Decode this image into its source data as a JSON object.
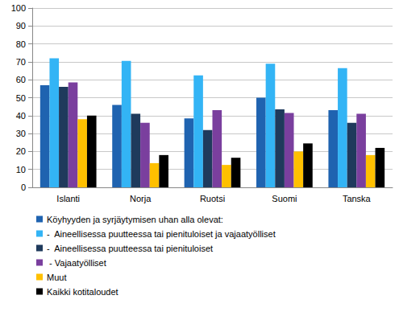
{
  "chart_data": {
    "type": "bar",
    "categories": [
      "Islanti",
      "Norja",
      "Ruotsi",
      "Suomi",
      "Tanska"
    ],
    "series": [
      {
        "name": "Köyhyyden ja syrjäytymisen uhan alla olevat:",
        "color": "#1f63b0",
        "values": [
          57,
          46,
          38.5,
          50,
          43
        ]
      },
      {
        "name": "-  Aineellisessa puutteessa tai pienituloiset ja vajaatyölliset",
        "color": "#33b4f5",
        "values": [
          72,
          70.5,
          62.5,
          69,
          66.5
        ]
      },
      {
        "name": "-  Aineellisessa puutteessa tai pienituloiset",
        "color": "#1f3a5c",
        "values": [
          56,
          41,
          32,
          43.5,
          36
        ]
      },
      {
        "name": " - Vajaatyölliset",
        "color": "#7a3f9e",
        "values": [
          58.5,
          36,
          43,
          41.5,
          41
        ]
      },
      {
        "name": "Muut",
        "color": "#ffc000",
        "values": [
          38,
          13.5,
          12.5,
          20,
          18
        ]
      },
      {
        "name": "Kaikki kotitaloudet",
        "color": "#000000",
        "values": [
          40,
          18,
          16.5,
          24.5,
          22
        ]
      }
    ],
    "ylim": [
      0,
      100
    ],
    "yticks": [
      0,
      10,
      20,
      30,
      40,
      50,
      60,
      70,
      80,
      90,
      100
    ],
    "grid": true,
    "legend": "bottom"
  }
}
